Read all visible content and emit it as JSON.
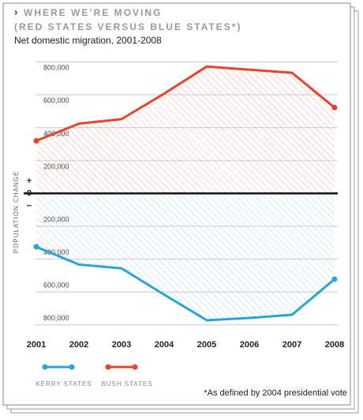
{
  "chart_data": {
    "type": "line",
    "title_marker": "›",
    "title": [
      "WHERE WE’RE MOVING",
      "(RED STATES VERSUS BLUE STATES*)"
    ],
    "subtitle": "Net domestic migration, 2001-2008",
    "y_label": "POPULATION CHANGE",
    "positive_sign": "+",
    "negative_sign": "–",
    "footnote": "*As defined by 2004 presidential vote",
    "categories": [
      "2001",
      "2002",
      "2003",
      "2004",
      "2005",
      "2006",
      "2007",
      "2008"
    ],
    "series": [
      {
        "name": "KERRY STATES",
        "color": "#2aa3d8",
        "values": [
          -325000,
          -433000,
          -456000,
          -616000,
          -772000,
          -758000,
          -739000,
          -522000
        ]
      },
      {
        "name": "BUSH STATES",
        "color": "#e8432d",
        "values": [
          320000,
          424000,
          452000,
          607000,
          772000,
          753000,
          734000,
          522000
        ]
      }
    ],
    "ylim": [
      -840000,
      840000
    ],
    "yticks": [
      {
        "value": -800000,
        "label": "800,000"
      },
      {
        "value": -600000,
        "label": "600,000"
      },
      {
        "value": -400000,
        "label": "400,000"
      },
      {
        "value": -200000,
        "label": "200,000"
      },
      0,
      {
        "value": 200000,
        "label": "200,000"
      },
      {
        "value": 400000,
        "label": "400,000"
      },
      {
        "value": 600000,
        "label": "600,000"
      },
      {
        "value": 800000,
        "label": "800,000"
      }
    ],
    "grid": true,
    "legend": "bottom-left"
  }
}
